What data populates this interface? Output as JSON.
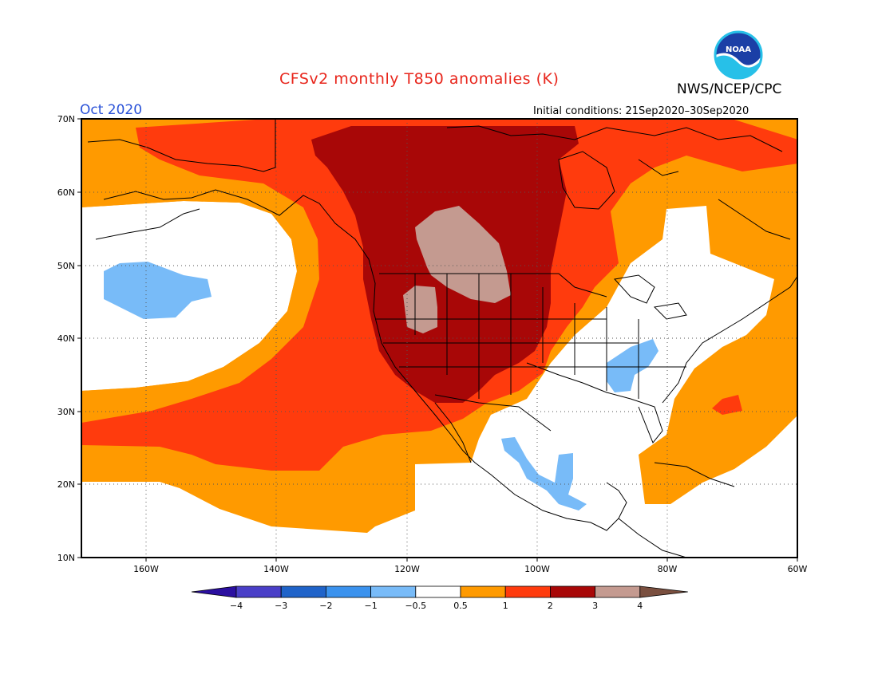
{
  "title": "CFSv2 monthly T850 anomalies (K)",
  "agency": "NWS/NCEP/CPC",
  "logo_text": "NOAA",
  "month": "Oct 2020",
  "initial_conditions": "Initial conditions: 21Sep2020–30Sep2020",
  "lat_labels": [
    "70N",
    "60N",
    "50N",
    "40N",
    "30N",
    "20N",
    "10N"
  ],
  "lon_labels": [
    "160W",
    "140W",
    "120W",
    "100W",
    "80W",
    "60W"
  ],
  "colorbar": {
    "labels": [
      "−4",
      "−3",
      "−2",
      "−1",
      "−0.5",
      "0.5",
      "1",
      "2",
      "3",
      "4"
    ],
    "colors": [
      "#2b0fa0",
      "#4a3fc8",
      "#1f63c9",
      "#3a92ee",
      "#78bbf8",
      "#ffffff",
      "#ff9a00",
      "#ff3b0d",
      "#a80707",
      "#c49a90",
      "#7a4f3f"
    ]
  },
  "legend_colors": {
    "anom_0_5_1": "#ff9a00",
    "anom_1_2": "#ff3b0d",
    "anom_2_3": "#a80707",
    "anom_3_4": "#c49a90",
    "anom_neg_0_5_neg_1": "#78bbf8"
  }
}
